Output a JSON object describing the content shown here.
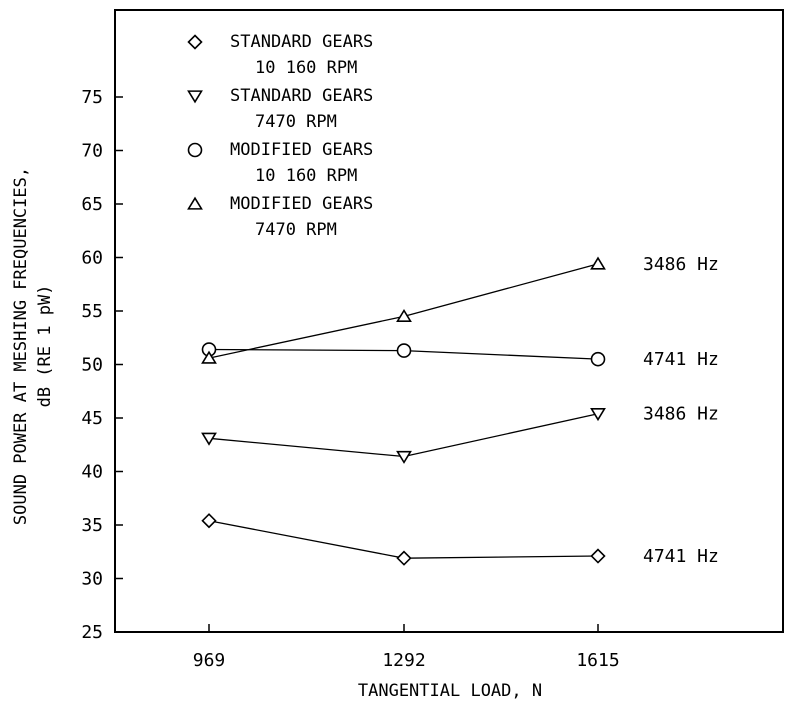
{
  "chart_data": {
    "type": "line",
    "xlabel": "TANGENTIAL LOAD, N",
    "ylabel": [
      "SOUND POWER AT MESHING FREQUENCIES,",
      "dB (RE 1 pW)"
    ],
    "categories": [
      "969",
      "1292",
      "1615"
    ],
    "yticks": [
      "25",
      "30",
      "35",
      "40",
      "45",
      "50",
      "55",
      "60",
      "65",
      "70",
      "75"
    ],
    "ylim": [
      25,
      80
    ],
    "grid": false,
    "legend_position": "top-left",
    "series": [
      {
        "name": [
          "STANDARD GEARS",
          "10 160 RPM"
        ],
        "marker": "diamond",
        "values": [
          35.4,
          31.9,
          32.1
        ],
        "end_label": "4741 Hz"
      },
      {
        "name": [
          "STANDARD GEARS",
          "7470 RPM"
        ],
        "marker": "triangle-down",
        "values": [
          43.1,
          41.4,
          45.4
        ],
        "end_label": "3486 Hz"
      },
      {
        "name": [
          "MODIFIED GEARS",
          "10 160 RPM"
        ],
        "marker": "circle",
        "values": [
          51.4,
          51.3,
          50.5
        ],
        "end_label": "4741 Hz"
      },
      {
        "name": [
          "MODIFIED GEARS",
          "7470 RPM"
        ],
        "marker": "triangle-up",
        "values": [
          50.6,
          54.5,
          59.4
        ],
        "end_label": "3486 Hz"
      }
    ]
  }
}
